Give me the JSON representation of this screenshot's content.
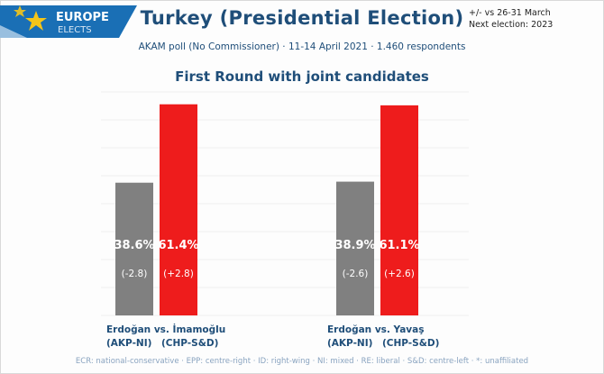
{
  "header": {
    "logo_line1": "EUROPE",
    "logo_line2": "ELECTS",
    "title": "Turkey (Presidential Election)",
    "subtitle": "AKAM poll (No Commissioner) · 11-14 April 2021 · 1.460 respondents",
    "section": "First Round with joint candidates",
    "note_line1": "+/- vs 26-31 March",
    "note_line2": "Next election: 2023"
  },
  "footer": "ECR: national-conservative · EPP: centre-right · ID: right-wing · NI: mixed · RE: liberal · S&D: centre-left · *: unaffiliated",
  "colors": {
    "grey": "#808080",
    "red": "#ee1c1c",
    "navy": "#1f4e79",
    "logo_bg": "#1a6fb5",
    "star": "#f5c518"
  },
  "chart_data": {
    "type": "bar",
    "ylim": [
      0,
      65
    ],
    "groups": [
      {
        "name_line": "Erdoğan vs. İmamoğlu",
        "bars": [
          {
            "name": "Erdoğan",
            "party": "(AKP-NI)",
            "value": 38.6,
            "label": "38.6%",
            "change": "(-2.8)",
            "color": "#808080"
          },
          {
            "name": "İmamoğlu",
            "party": "(CHP-S&D)",
            "value": 61.4,
            "label": "61.4%",
            "change": "(+2.8)",
            "color": "#ee1c1c"
          }
        ]
      },
      {
        "name_line": "Erdoğan vs. Yavaş",
        "bars": [
          {
            "name": "Erdoğan",
            "party": "(AKP-NI)",
            "value": 38.9,
            "label": "38.9%",
            "change": "(-2.6)",
            "color": "#808080"
          },
          {
            "name": "Yavaş",
            "party": "(CHP-S&D)",
            "value": 61.1,
            "label": "61.1%",
            "change": "(+2.6)",
            "color": "#ee1c1c"
          }
        ]
      }
    ]
  }
}
